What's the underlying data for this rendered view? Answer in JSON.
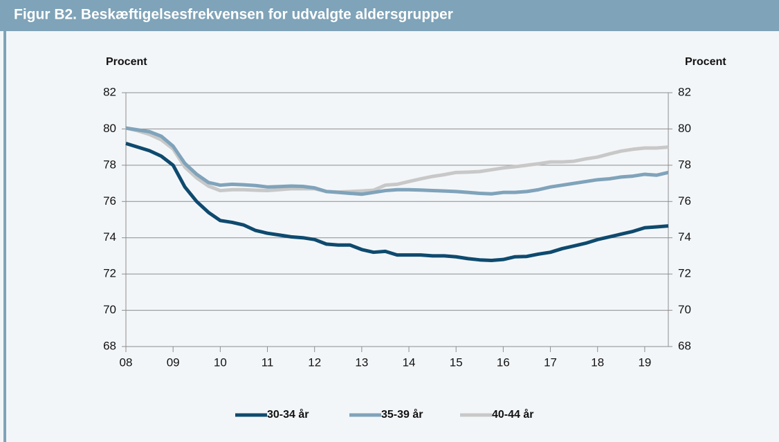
{
  "chart_data": {
    "type": "line",
    "title": "Figur B2. Beskæftigelsesfrekvensen for udvalgte aldersgrupper",
    "y_label": "Procent",
    "y2_label": "Procent",
    "x": [
      2008,
      2008.25,
      2008.5,
      2008.75,
      2009,
      2009.25,
      2009.5,
      2009.75,
      2010,
      2010.25,
      2010.5,
      2010.75,
      2011,
      2011.25,
      2011.5,
      2011.75,
      2012,
      2012.25,
      2012.5,
      2012.75,
      2013,
      2013.25,
      2013.5,
      2013.75,
      2014,
      2014.25,
      2014.5,
      2014.75,
      2015,
      2015.25,
      2015.5,
      2015.75,
      2016,
      2016.25,
      2016.5,
      2016.75,
      2017,
      2017.25,
      2017.5,
      2017.75,
      2018,
      2018.25,
      2018.5,
      2018.75,
      2019,
      2019.25,
      2019.5
    ],
    "series": [
      {
        "name": "30-34 år",
        "color": "#0e4a6e",
        "values": [
          79.2,
          79.0,
          78.8,
          78.5,
          78.0,
          76.8,
          76.0,
          75.4,
          74.95,
          74.85,
          74.7,
          74.4,
          74.25,
          74.15,
          74.05,
          74.0,
          73.9,
          73.65,
          73.6,
          73.6,
          73.35,
          73.2,
          73.25,
          73.05,
          73.05,
          73.05,
          73.0,
          73.0,
          72.95,
          72.85,
          72.78,
          72.75,
          72.8,
          72.95,
          72.97,
          73.1,
          73.2,
          73.4,
          73.55,
          73.7,
          73.9,
          74.05,
          74.2,
          74.35,
          74.55,
          74.6,
          74.65
        ]
      },
      {
        "name": "35-39 år",
        "color": "#7fa3ba",
        "values": [
          80.05,
          79.95,
          79.85,
          79.6,
          79.05,
          78.1,
          77.5,
          77.05,
          76.9,
          76.95,
          76.92,
          76.88,
          76.8,
          76.82,
          76.85,
          76.83,
          76.75,
          76.55,
          76.5,
          76.45,
          76.4,
          76.5,
          76.6,
          76.65,
          76.65,
          76.63,
          76.6,
          76.58,
          76.55,
          76.5,
          76.45,
          76.42,
          76.5,
          76.5,
          76.55,
          76.65,
          76.8,
          76.9,
          77.0,
          77.1,
          77.2,
          77.25,
          77.35,
          77.4,
          77.5,
          77.45,
          77.6
        ]
      },
      {
        "name": "40-44 år",
        "color": "#c8c8c8",
        "values": [
          80.05,
          79.9,
          79.7,
          79.4,
          78.9,
          77.9,
          77.3,
          76.85,
          76.6,
          76.65,
          76.65,
          76.62,
          76.6,
          76.65,
          76.7,
          76.7,
          76.7,
          76.55,
          76.52,
          76.55,
          76.58,
          76.62,
          76.9,
          76.95,
          77.1,
          77.25,
          77.38,
          77.48,
          77.6,
          77.62,
          77.65,
          77.75,
          77.85,
          77.92,
          78.0,
          78.08,
          78.18,
          78.18,
          78.22,
          78.35,
          78.45,
          78.62,
          78.78,
          78.88,
          78.95,
          78.95,
          79.0
        ]
      }
    ],
    "xlim": [
      2008,
      2019.5
    ],
    "xticks": [
      {
        "value": 2008,
        "label": "08"
      },
      {
        "value": 2009,
        "label": "09"
      },
      {
        "value": 2010,
        "label": "10"
      },
      {
        "value": 2011,
        "label": "11"
      },
      {
        "value": 2012,
        "label": "12"
      },
      {
        "value": 2013,
        "label": "13"
      },
      {
        "value": 2014,
        "label": "14"
      },
      {
        "value": 2015,
        "label": "15"
      },
      {
        "value": 2016,
        "label": "16"
      },
      {
        "value": 2017,
        "label": "17"
      },
      {
        "value": 2018,
        "label": "18"
      },
      {
        "value": 2019,
        "label": "19"
      }
    ],
    "ylim": [
      68,
      82
    ],
    "yticks": [
      68,
      70,
      72,
      74,
      76,
      78,
      80,
      82
    ],
    "y2lim": [
      68,
      82
    ],
    "y2ticks": [
      68,
      70,
      72,
      74,
      76,
      78,
      80,
      82
    ],
    "grid": true,
    "legend": "bottom"
  }
}
